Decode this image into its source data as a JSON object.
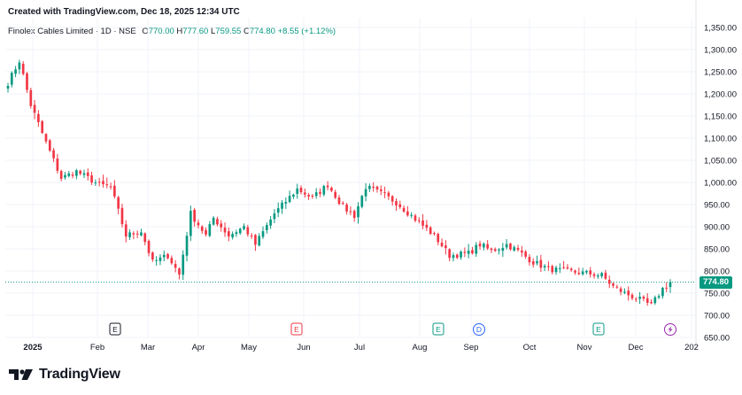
{
  "header": {
    "created": "Created with TradingView.com, Dec 18, 2025 12:34 UTC"
  },
  "legend": {
    "symbol": "Finolex Cables Limited · 1D · NSE",
    "o_label": "O",
    "o_value": "770.00",
    "h_label": "H",
    "h_value": "777.60",
    "l_label": "L",
    "l_value": "759.55",
    "c_label": "C",
    "c_value": "774.80",
    "change": "+8.55 (+1.12%)"
  },
  "colors": {
    "up": "#089981",
    "down": "#f23645",
    "grid": "#f0f3fa",
    "last_line": "#089981",
    "text": "#131722"
  },
  "price_label": "774.80",
  "logo_text": "TradingView",
  "chart_data": {
    "type": "candlestick",
    "title": "Finolex Cables Limited · 1D · NSE",
    "ylim": [
      650,
      1350
    ],
    "y_ticks": [
      "1,350.00",
      "1,300.00",
      "1,250.00",
      "1,200.00",
      "1,150.00",
      "1,100.00",
      "1,050.00",
      "1,000.00",
      "950.00",
      "900.00",
      "850.00",
      "800.00",
      "750.00",
      "700.00",
      "650.00"
    ],
    "x_ticks": [
      "2025",
      "Feb",
      "Mar",
      "Apr",
      "May",
      "Jun",
      "Jul",
      "Aug",
      "Sep",
      "Oct",
      "Nov",
      "Dec",
      "202"
    ],
    "last_price": 774.8,
    "events": [
      {
        "type": "E",
        "month": "Feb-Mar"
      },
      {
        "type": "E",
        "month": "May-Jun"
      },
      {
        "type": "E",
        "month": "Aug"
      },
      {
        "type": "D",
        "month": "Aug-Sep"
      },
      {
        "type": "E",
        "month": "Nov"
      },
      {
        "type": "split",
        "month": "Dec"
      }
    ],
    "anchors": [
      {
        "t": 0,
        "p": 1225
      },
      {
        "t": 3,
        "p": 1275
      },
      {
        "t": 6,
        "p": 1175
      },
      {
        "t": 10,
        "p": 1090
      },
      {
        "t": 14,
        "p": 1010
      },
      {
        "t": 18,
        "p": 1025
      },
      {
        "t": 24,
        "p": 995
      },
      {
        "t": 27,
        "p": 990
      },
      {
        "t": 31,
        "p": 880
      },
      {
        "t": 35,
        "p": 890
      },
      {
        "t": 38,
        "p": 820
      },
      {
        "t": 42,
        "p": 835
      },
      {
        "t": 45,
        "p": 792
      },
      {
        "t": 48,
        "p": 930
      },
      {
        "t": 52,
        "p": 880
      },
      {
        "t": 54,
        "p": 920
      },
      {
        "t": 58,
        "p": 880
      },
      {
        "t": 62,
        "p": 900
      },
      {
        "t": 65,
        "p": 860
      },
      {
        "t": 70,
        "p": 930
      },
      {
        "t": 76,
        "p": 985
      },
      {
        "t": 80,
        "p": 965
      },
      {
        "t": 84,
        "p": 995
      },
      {
        "t": 88,
        "p": 945
      },
      {
        "t": 91,
        "p": 925
      },
      {
        "t": 94,
        "p": 990
      },
      {
        "t": 98,
        "p": 975
      },
      {
        "t": 102,
        "p": 955
      },
      {
        "t": 106,
        "p": 925
      },
      {
        "t": 112,
        "p": 880
      },
      {
        "t": 116,
        "p": 835
      },
      {
        "t": 121,
        "p": 840
      },
      {
        "t": 124,
        "p": 860
      },
      {
        "t": 127,
        "p": 845
      },
      {
        "t": 131,
        "p": 860
      },
      {
        "t": 134,
        "p": 845
      },
      {
        "t": 138,
        "p": 820
      },
      {
        "t": 142,
        "p": 805
      },
      {
        "t": 146,
        "p": 800
      },
      {
        "t": 152,
        "p": 795
      },
      {
        "t": 156,
        "p": 790
      },
      {
        "t": 159,
        "p": 765
      },
      {
        "t": 162,
        "p": 750
      },
      {
        "t": 166,
        "p": 735
      },
      {
        "t": 169,
        "p": 722
      },
      {
        "t": 172,
        "p": 760
      },
      {
        "t": 174,
        "p": 774.8
      }
    ]
  }
}
